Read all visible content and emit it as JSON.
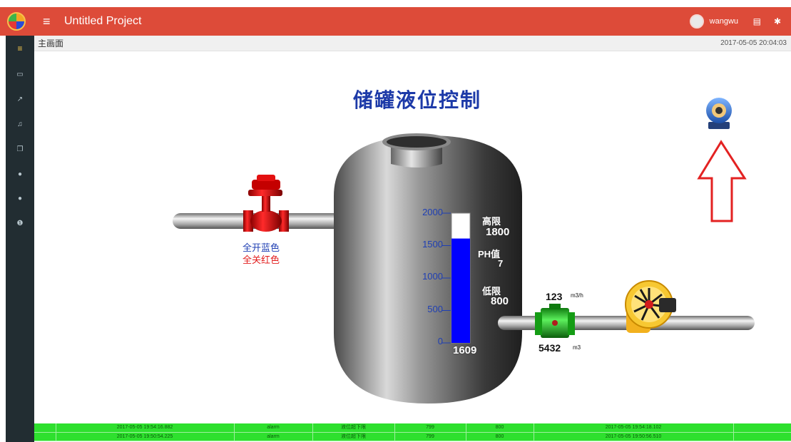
{
  "app": {
    "title": "Untitled Project",
    "user": "wangwu"
  },
  "icons": {
    "logo": "app-logo",
    "menu": "hamburger-icon",
    "list": "list-icon",
    "gear": "gear-icon",
    "camera": "webcam-icon",
    "arrow": "up-arrow-icon"
  },
  "topbar_icons": {
    "menu": "≡",
    "list": "▤",
    "gear": "✱"
  },
  "sidebar": {
    "items": [
      {
        "name": "dashboard",
        "glyph": "≡"
      },
      {
        "name": "map",
        "glyph": "▭"
      },
      {
        "name": "chart",
        "glyph": "↗"
      },
      {
        "name": "alarm",
        "glyph": "♫"
      },
      {
        "name": "copy",
        "glyph": "❐"
      },
      {
        "name": "user",
        "glyph": "●"
      },
      {
        "name": "users",
        "glyph": "●"
      },
      {
        "name": "info",
        "glyph": "❶"
      }
    ]
  },
  "breadcrumb": "主画面",
  "datetime": "2017-05-05 20:04:03",
  "scene": {
    "title": "储罐液位控制",
    "valve_open": "全开蓝色",
    "valve_closed": "全关红色",
    "scale": [
      "2000",
      "1500",
      "1000",
      "500",
      "0"
    ],
    "level_value": "1609",
    "level_percent": 80.45,
    "scale_max": 2000,
    "high_label": "高限",
    "high_value": "1800",
    "ph_label": "PH值",
    "ph_value": "7",
    "low_label": "低限",
    "low_value": "800",
    "flow_rate": "123",
    "flow_rate_unit": "m3/h",
    "flow_total": "5432",
    "flow_total_unit": "m3"
  },
  "colors": {
    "header": "#dd4b39",
    "sidebar": "#222d32",
    "level": "#0000ff",
    "alarm": "#2ee02e",
    "arrow": "#e32222"
  },
  "alarms": [
    [
      "",
      "2017-05-05 19:54:16.882",
      "alarm",
      "液位超下限",
      "799",
      "800",
      "2017-05-05 19:54:18.102",
      ""
    ],
    [
      "",
      "2017-05-05 19:50:54.225",
      "alarm",
      "液位超下限",
      "799",
      "800",
      "2017-05-05 19:50:56.510",
      ""
    ]
  ]
}
